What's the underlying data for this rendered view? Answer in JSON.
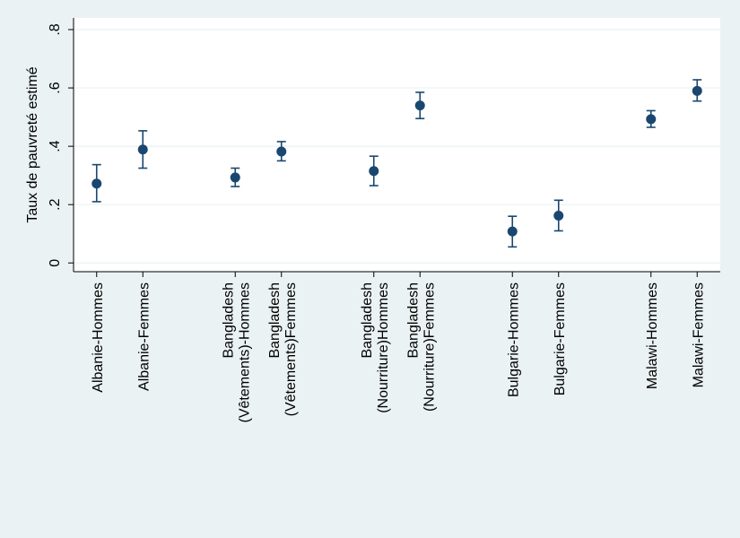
{
  "chart_data": {
    "type": "scatter",
    "ylabel": "Taux de pauvreté estimé",
    "ylim": [
      -0.03,
      0.84
    ],
    "yticks": [
      {
        "value": 0,
        "label": "0"
      },
      {
        "value": 0.2,
        "label": ".2"
      },
      {
        "value": 0.4,
        "label": ".4"
      },
      {
        "value": 0.6,
        "label": ".6"
      },
      {
        "value": 0.8,
        "label": ".8"
      }
    ],
    "grid": true,
    "marker_color": "#1a476f",
    "points": [
      {
        "label_lines": [
          "Albanie-Hommes"
        ],
        "x": 1,
        "y": 0.272,
        "lo": 0.21,
        "hi": 0.337
      },
      {
        "label_lines": [
          "Albanie-Femmes"
        ],
        "x": 2,
        "y": 0.389,
        "lo": 0.325,
        "hi": 0.453
      },
      {
        "label_lines": [
          "Bangladesh",
          "(Vêtements)-Hommes"
        ],
        "x": 4,
        "y": 0.293,
        "lo": 0.262,
        "hi": 0.325
      },
      {
        "label_lines": [
          "Bangladesh",
          "(Vêtements)Femmes"
        ],
        "x": 5,
        "y": 0.382,
        "lo": 0.35,
        "hi": 0.416
      },
      {
        "label_lines": [
          "Bangladesh",
          "(Nourriture)Hommes"
        ],
        "x": 7,
        "y": 0.315,
        "lo": 0.265,
        "hi": 0.366
      },
      {
        "label_lines": [
          "Bangladesh",
          "(Nourriture)Femmes"
        ],
        "x": 8,
        "y": 0.54,
        "lo": 0.495,
        "hi": 0.585
      },
      {
        "label_lines": [
          "Bulgarie-Hommes"
        ],
        "x": 10,
        "y": 0.108,
        "lo": 0.055,
        "hi": 0.16
      },
      {
        "label_lines": [
          "Bulgarie-Femmes"
        ],
        "x": 11,
        "y": 0.162,
        "lo": 0.11,
        "hi": 0.215
      },
      {
        "label_lines": [
          "Malawi-Hommes"
        ],
        "x": 13,
        "y": 0.493,
        "lo": 0.465,
        "hi": 0.522
      },
      {
        "label_lines": [
          "Malawi-Femmes"
        ],
        "x": 14,
        "y": 0.59,
        "lo": 0.555,
        "hi": 0.628
      }
    ]
  }
}
